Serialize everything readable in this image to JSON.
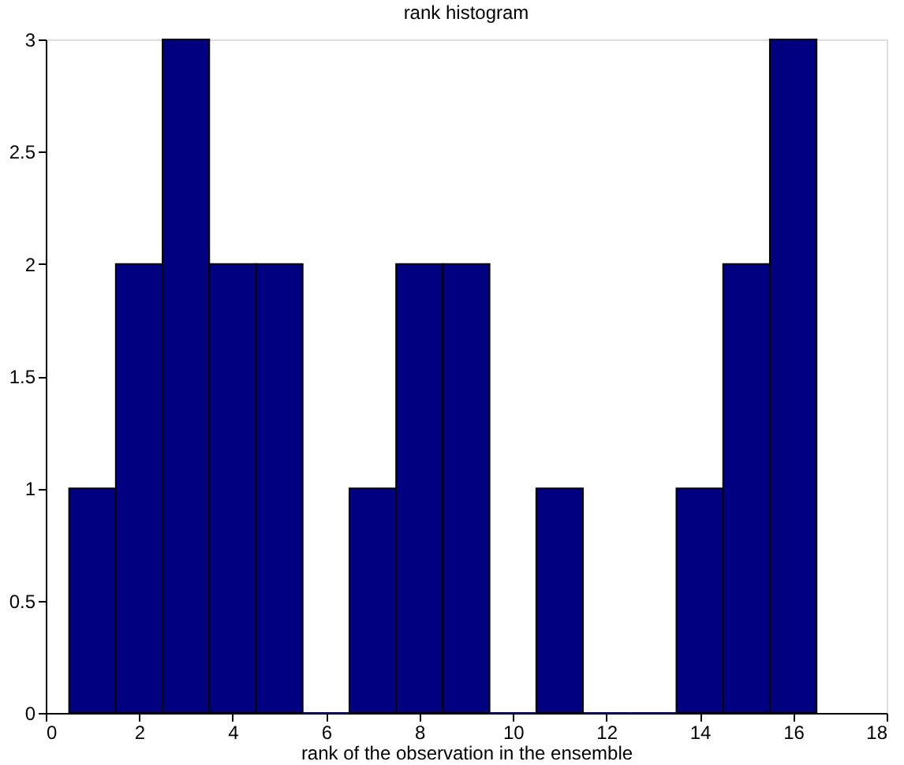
{
  "chart_data": {
    "type": "histogram",
    "title": "rank histogram",
    "xlabel": "rank of the observation in the ensemble",
    "bins": [
      0.5,
      1.5,
      2.5,
      3.5,
      4.5,
      5.5,
      6.5,
      7.5,
      8.5,
      9.5,
      10.5,
      11.5,
      12.5,
      13.5,
      14.5,
      15.5,
      16.5
    ],
    "values": [
      1,
      2,
      3,
      2,
      2,
      0,
      1,
      2,
      2,
      0,
      1,
      0,
      0,
      1,
      2,
      3
    ],
    "color": "#000080",
    "xlim": [
      0,
      18
    ],
    "xticks": [
      0,
      2,
      4,
      6,
      8,
      10,
      12,
      14,
      16,
      18
    ],
    "ylim": [
      0,
      3
    ],
    "yticks": [
      0,
      0.5,
      1,
      1.5,
      2,
      2.5,
      3
    ],
    "grid": false
  }
}
